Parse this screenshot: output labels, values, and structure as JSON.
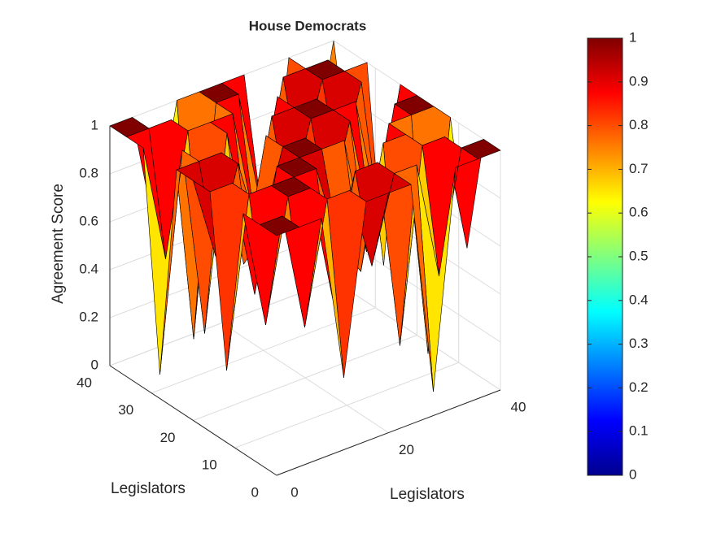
{
  "chart_data": {
    "type": "surface",
    "title": "House Democrats",
    "xlabel": "Legislators",
    "ylabel": "Legislators",
    "zlabel": "Agreement Score",
    "x": [
      0,
      4,
      8,
      12,
      16,
      20,
      24,
      28,
      32,
      36,
      40
    ],
    "y": [
      0,
      4,
      8,
      12,
      16,
      20,
      24,
      28,
      32,
      36,
      40
    ],
    "z": [
      [
        1,
        1,
        1,
        0.3,
        1,
        1,
        1,
        0.1,
        1,
        1,
        1
      ],
      [
        1,
        1,
        0.5,
        1,
        1,
        0.65,
        1,
        1,
        0.5,
        1,
        1
      ],
      [
        1,
        0.5,
        1,
        1,
        0.5,
        1,
        1,
        0.2,
        1,
        1,
        0.5
      ],
      [
        0.3,
        1,
        1,
        1,
        1,
        0.65,
        0.5,
        1,
        1,
        0.05,
        1
      ],
      [
        1,
        1,
        0.5,
        1,
        1,
        1,
        1,
        0.5,
        1,
        1,
        1
      ],
      [
        1,
        0.65,
        1,
        0.65,
        1,
        1,
        0.65,
        1,
        0.5,
        1,
        1
      ],
      [
        1,
        1,
        1,
        0.5,
        1,
        0.65,
        1,
        1,
        1,
        0.5,
        1
      ],
      [
        0.1,
        1,
        0.2,
        1,
        0.5,
        1,
        1,
        1,
        0.65,
        1,
        0.2
      ],
      [
        1,
        0.5,
        1,
        1,
        1,
        0.5,
        1,
        0.65,
        1,
        1,
        1
      ],
      [
        1,
        1,
        1,
        0.05,
        1,
        1,
        0.5,
        1,
        1,
        1,
        0.5
      ],
      [
        1,
        1,
        0.5,
        1,
        1,
        1,
        1,
        0.2,
        1,
        0.5,
        1
      ]
    ],
    "xlim": [
      0,
      40
    ],
    "ylim": [
      0,
      40
    ],
    "zlim": [
      0,
      1
    ],
    "xticks": [
      0,
      20,
      40
    ],
    "yticks": [
      0,
      10,
      20,
      30,
      40
    ],
    "zticks": [
      0,
      0.2,
      0.4,
      0.6,
      0.8,
      1
    ],
    "colormap": "jet",
    "clim": [
      0,
      1
    ],
    "colorbar_ticks": [
      0,
      0.1,
      0.2,
      0.3,
      0.4,
      0.5,
      0.6,
      0.7,
      0.8,
      0.9,
      1
    ],
    "grid": true
  }
}
